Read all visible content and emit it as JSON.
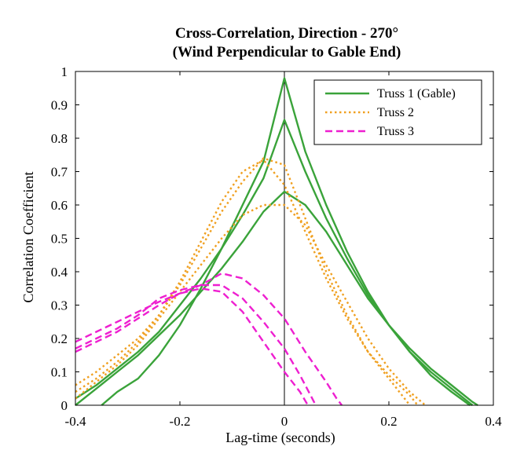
{
  "chart_data": {
    "type": "line",
    "title": "Cross-Correlation, Direction - 270°",
    "subtitle": "(Wind Perpendicular to Gable End)",
    "xlabel": "Lag-time (seconds)",
    "ylabel": "Correlation Coefficient",
    "xlim": [
      -0.4,
      0.4
    ],
    "ylim": [
      0,
      1
    ],
    "x_ticks": [
      "-0.4",
      "-0.2",
      "0",
      "0.2",
      "0.4"
    ],
    "y_ticks": [
      "0",
      "0.1",
      "0.2",
      "0.3",
      "0.4",
      "0.5",
      "0.6",
      "0.7",
      "0.8",
      "0.9",
      "1"
    ],
    "grid": false,
    "legend_position": "top-right",
    "zero_line": true,
    "legend": [
      {
        "name": "Truss 1 (Gable)",
        "color": "#3aa33a",
        "style": "solid"
      },
      {
        "name": "Truss 2",
        "color": "#f0a020",
        "style": "dotted"
      },
      {
        "name": "Truss 3",
        "color": "#ee1fd0",
        "style": "dashed"
      }
    ],
    "series": [
      {
        "group": "Truss 1 (Gable)",
        "color": "#3aa33a",
        "style": "solid",
        "points": [
          [
            -0.35,
            0
          ],
          [
            -0.32,
            0.04
          ],
          [
            -0.28,
            0.08
          ],
          [
            -0.24,
            0.15
          ],
          [
            -0.2,
            0.24
          ],
          [
            -0.16,
            0.35
          ],
          [
            -0.12,
            0.47
          ],
          [
            -0.08,
            0.6
          ],
          [
            -0.04,
            0.73
          ],
          [
            0,
            0.98
          ],
          [
            0.04,
            0.76
          ],
          [
            0.08,
            0.6
          ],
          [
            0.12,
            0.46
          ],
          [
            0.16,
            0.34
          ],
          [
            0.2,
            0.24
          ],
          [
            0.24,
            0.16
          ],
          [
            0.28,
            0.09
          ],
          [
            0.32,
            0.04
          ],
          [
            0.355,
            0
          ]
        ]
      },
      {
        "group": "Truss 1 (Gable)",
        "color": "#3aa33a",
        "style": "solid",
        "points": [
          [
            -0.4,
            0.02
          ],
          [
            -0.36,
            0.06
          ],
          [
            -0.32,
            0.11
          ],
          [
            -0.28,
            0.16
          ],
          [
            -0.24,
            0.22
          ],
          [
            -0.2,
            0.3
          ],
          [
            -0.16,
            0.38
          ],
          [
            -0.12,
            0.47
          ],
          [
            -0.08,
            0.57
          ],
          [
            -0.04,
            0.68
          ],
          [
            0,
            0.855
          ],
          [
            0.04,
            0.7
          ],
          [
            0.08,
            0.56
          ],
          [
            0.12,
            0.44
          ],
          [
            0.16,
            0.33
          ],
          [
            0.2,
            0.24
          ],
          [
            0.24,
            0.16
          ],
          [
            0.28,
            0.1
          ],
          [
            0.32,
            0.05
          ],
          [
            0.36,
            0
          ]
        ]
      },
      {
        "group": "Truss 1 (Gable)",
        "color": "#3aa33a",
        "style": "solid",
        "points": [
          [
            -0.4,
            0
          ],
          [
            -0.36,
            0.05
          ],
          [
            -0.32,
            0.1
          ],
          [
            -0.28,
            0.15
          ],
          [
            -0.24,
            0.21
          ],
          [
            -0.2,
            0.27
          ],
          [
            -0.16,
            0.34
          ],
          [
            -0.12,
            0.41
          ],
          [
            -0.08,
            0.49
          ],
          [
            -0.04,
            0.58
          ],
          [
            0,
            0.64
          ],
          [
            0.04,
            0.6
          ],
          [
            0.08,
            0.52
          ],
          [
            0.12,
            0.42
          ],
          [
            0.16,
            0.32
          ],
          [
            0.2,
            0.24
          ],
          [
            0.24,
            0.17
          ],
          [
            0.28,
            0.11
          ],
          [
            0.32,
            0.06
          ],
          [
            0.36,
            0.01
          ],
          [
            0.37,
            0
          ]
        ]
      },
      {
        "group": "Truss 2",
        "color": "#f0a020",
        "style": "dotted",
        "points": [
          [
            -0.4,
            0.06
          ],
          [
            -0.36,
            0.1
          ],
          [
            -0.32,
            0.15
          ],
          [
            -0.28,
            0.2
          ],
          [
            -0.24,
            0.27
          ],
          [
            -0.2,
            0.36
          ],
          [
            -0.16,
            0.47
          ],
          [
            -0.12,
            0.58
          ],
          [
            -0.08,
            0.67
          ],
          [
            -0.04,
            0.74
          ],
          [
            0,
            0.72
          ],
          [
            0.04,
            0.56
          ],
          [
            0.08,
            0.4
          ],
          [
            0.12,
            0.27
          ],
          [
            0.16,
            0.16
          ],
          [
            0.2,
            0.08
          ],
          [
            0.23,
            0.02
          ],
          [
            0.24,
            0
          ]
        ]
      },
      {
        "group": "Truss 2",
        "color": "#f0a020",
        "style": "dotted",
        "points": [
          [
            -0.4,
            0.04
          ],
          [
            -0.36,
            0.08
          ],
          [
            -0.32,
            0.13
          ],
          [
            -0.28,
            0.19
          ],
          [
            -0.24,
            0.27
          ],
          [
            -0.2,
            0.37
          ],
          [
            -0.16,
            0.49
          ],
          [
            -0.12,
            0.61
          ],
          [
            -0.08,
            0.7
          ],
          [
            -0.04,
            0.735
          ],
          [
            0,
            0.66
          ],
          [
            0.04,
            0.52
          ],
          [
            0.08,
            0.38
          ],
          [
            0.12,
            0.26
          ],
          [
            0.16,
            0.16
          ],
          [
            0.2,
            0.09
          ],
          [
            0.24,
            0.03
          ],
          [
            0.255,
            0
          ]
        ]
      },
      {
        "group": "Truss 2",
        "color": "#f0a020",
        "style": "dotted",
        "points": [
          [
            -0.4,
            0.02
          ],
          [
            -0.36,
            0.07
          ],
          [
            -0.32,
            0.12
          ],
          [
            -0.28,
            0.18
          ],
          [
            -0.24,
            0.26
          ],
          [
            -0.2,
            0.34
          ],
          [
            -0.16,
            0.42
          ],
          [
            -0.12,
            0.5
          ],
          [
            -0.08,
            0.57
          ],
          [
            -0.04,
            0.6
          ],
          [
            0,
            0.6
          ],
          [
            0.04,
            0.54
          ],
          [
            0.08,
            0.42
          ],
          [
            0.12,
            0.31
          ],
          [
            0.16,
            0.2
          ],
          [
            0.2,
            0.11
          ],
          [
            0.24,
            0.04
          ],
          [
            0.27,
            0
          ]
        ]
      },
      {
        "group": "Truss 3",
        "color": "#ee1fd0",
        "style": "dashed",
        "points": [
          [
            -0.4,
            0.19
          ],
          [
            -0.36,
            0.22
          ],
          [
            -0.32,
            0.25
          ],
          [
            -0.28,
            0.28
          ],
          [
            -0.24,
            0.31
          ],
          [
            -0.2,
            0.335
          ],
          [
            -0.16,
            0.36
          ],
          [
            -0.12,
            0.395
          ],
          [
            -0.08,
            0.38
          ],
          [
            -0.04,
            0.33
          ],
          [
            0,
            0.26
          ],
          [
            0.04,
            0.16
          ],
          [
            0.08,
            0.07
          ],
          [
            0.1,
            0.02
          ],
          [
            0.11,
            0
          ]
        ]
      },
      {
        "group": "Truss 3",
        "color": "#ee1fd0",
        "style": "dashed",
        "points": [
          [
            -0.4,
            0.17
          ],
          [
            -0.36,
            0.2
          ],
          [
            -0.32,
            0.23
          ],
          [
            -0.28,
            0.27
          ],
          [
            -0.24,
            0.32
          ],
          [
            -0.2,
            0.345
          ],
          [
            -0.16,
            0.36
          ],
          [
            -0.12,
            0.36
          ],
          [
            -0.08,
            0.32
          ],
          [
            -0.04,
            0.25
          ],
          [
            0,
            0.17
          ],
          [
            0.03,
            0.09
          ],
          [
            0.05,
            0.03
          ],
          [
            0.06,
            0
          ]
        ]
      },
      {
        "group": "Truss 3",
        "color": "#ee1fd0",
        "style": "dashed",
        "points": [
          [
            -0.4,
            0.16
          ],
          [
            -0.36,
            0.19
          ],
          [
            -0.32,
            0.22
          ],
          [
            -0.28,
            0.26
          ],
          [
            -0.24,
            0.3
          ],
          [
            -0.2,
            0.335
          ],
          [
            -0.16,
            0.35
          ],
          [
            -0.12,
            0.34
          ],
          [
            -0.08,
            0.28
          ],
          [
            -0.04,
            0.19
          ],
          [
            0,
            0.1
          ],
          [
            0.03,
            0.04
          ],
          [
            0.045,
            0
          ]
        ]
      }
    ]
  }
}
